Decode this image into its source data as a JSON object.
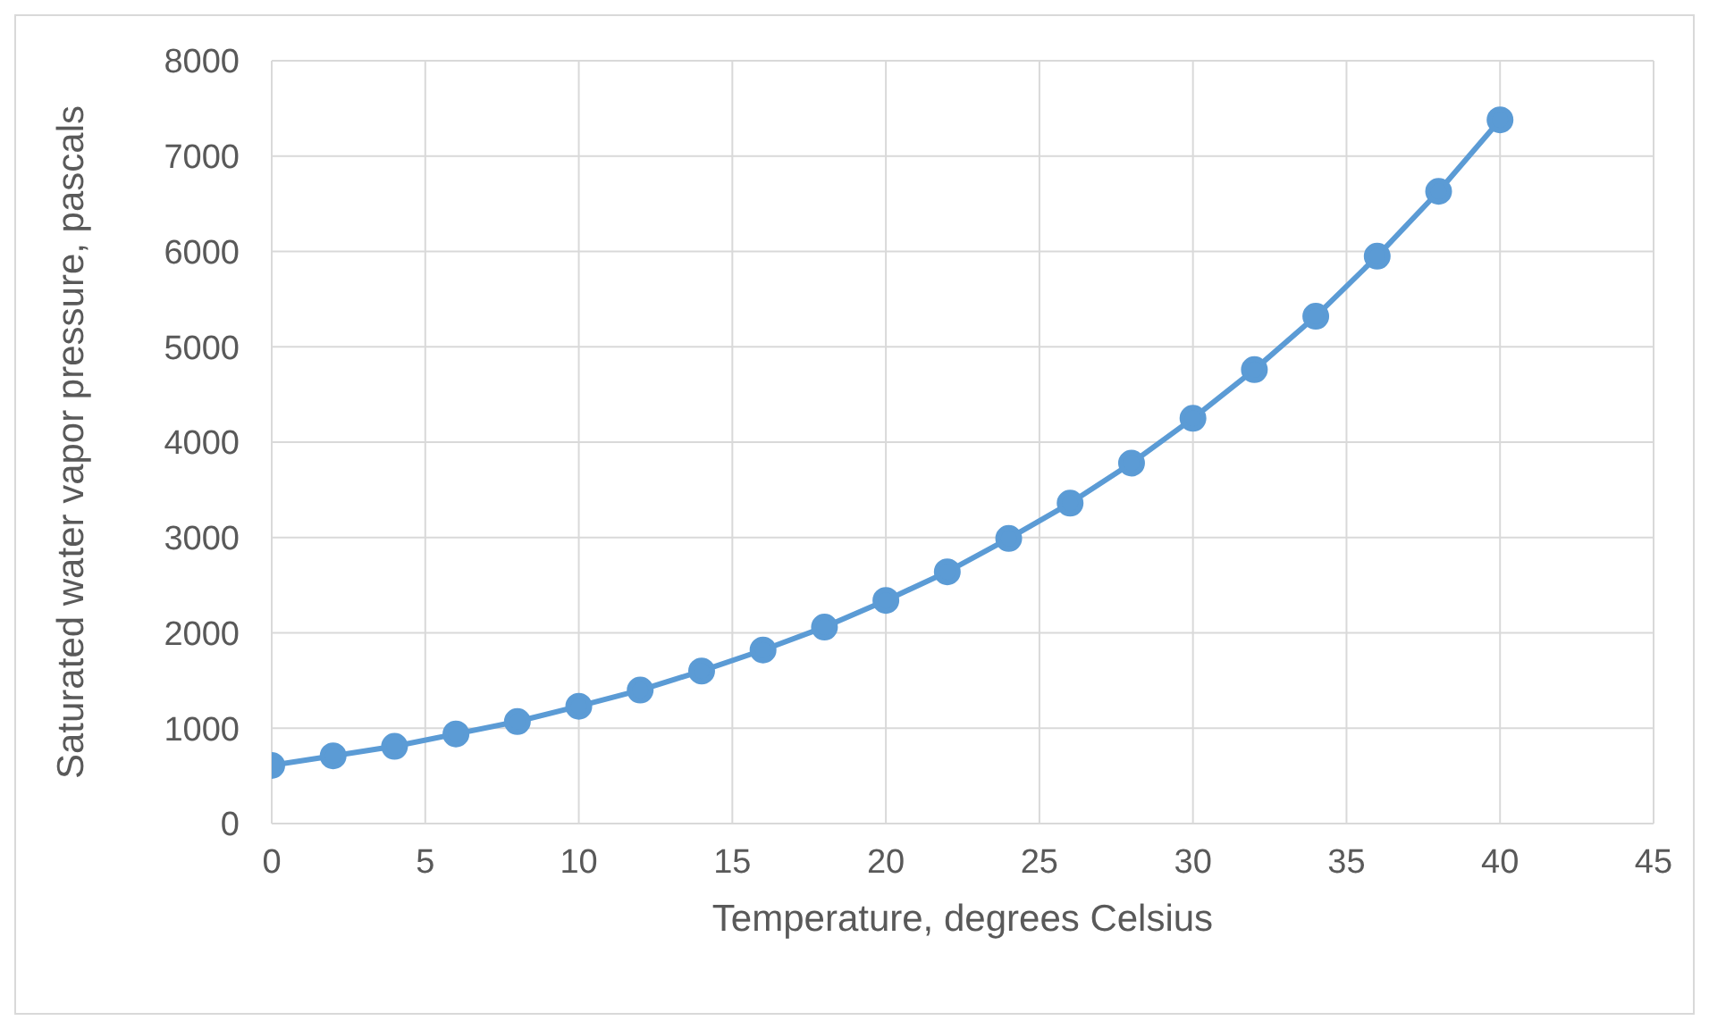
{
  "chart_data": {
    "type": "line",
    "xlabel": "Temperature, degrees Celsius",
    "ylabel": "Saturated water vapor pressure, pascals",
    "x": [
      0,
      2,
      4,
      6,
      8,
      10,
      12,
      14,
      16,
      18,
      20,
      22,
      24,
      26,
      28,
      30,
      32,
      34,
      36,
      38,
      40
    ],
    "series": [
      {
        "color": "#5b9bd5",
        "values": [
          610,
          710,
          810,
          940,
          1070,
          1230,
          1400,
          1600,
          1820,
          2060,
          2340,
          2640,
          2990,
          3360,
          3780,
          4250,
          4760,
          5320,
          5950,
          6630,
          7380
        ]
      }
    ],
    "xlim": [
      0,
      45
    ],
    "xticks": [
      0,
      5,
      10,
      15,
      20,
      25,
      30,
      35,
      40,
      45
    ],
    "ylim": [
      0,
      8000
    ],
    "yticks": [
      0,
      1000,
      2000,
      3000,
      4000,
      5000,
      6000,
      7000,
      8000
    ],
    "grid": true,
    "legend": false,
    "marker": "circle",
    "line_style": "solid"
  }
}
